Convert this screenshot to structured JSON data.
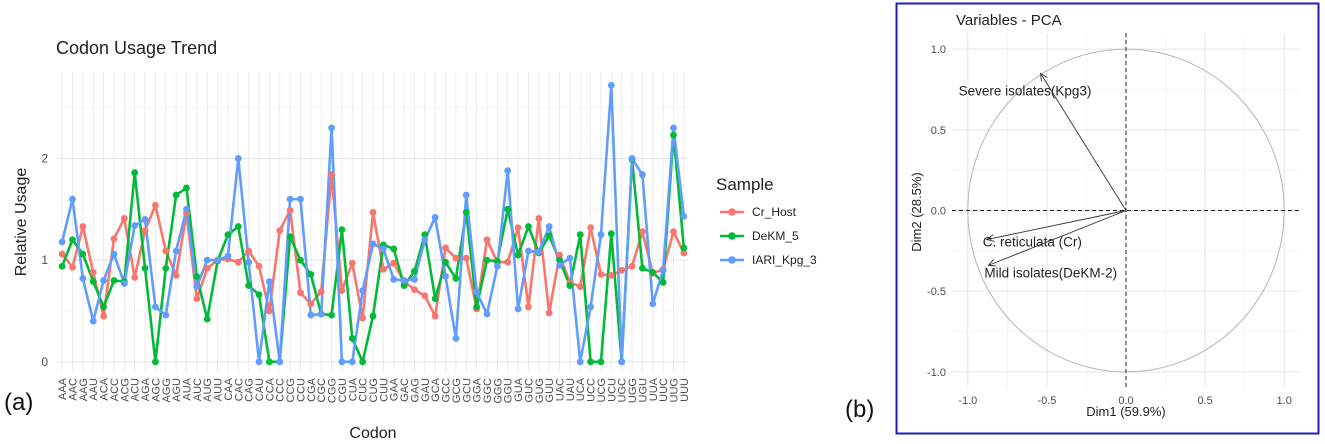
{
  "panel_labels": {
    "a": "(a)",
    "b": "(b)"
  },
  "chart_data": [
    {
      "type": "line",
      "title": "Codon Usage Trend",
      "xlabel": "Codon",
      "ylabel": "Relative Usage",
      "ylim": [
        -0.1,
        2.85
      ],
      "yticks": [
        0,
        1,
        2
      ],
      "grid": true,
      "legend": {
        "title": "Sample",
        "position": "right"
      },
      "categories": [
        "AAA",
        "AAC",
        "AAG",
        "AAU",
        "ACA",
        "ACC",
        "ACG",
        "ACU",
        "AGA",
        "AGC",
        "AGG",
        "AGU",
        "AUA",
        "AUC",
        "AUG",
        "AUU",
        "CAA",
        "CAC",
        "CAG",
        "CAU",
        "CCA",
        "CCC",
        "CCG",
        "CCU",
        "CGA",
        "CGC",
        "CGG",
        "CGU",
        "CUA",
        "CUC",
        "CUG",
        "CUU",
        "GAA",
        "GAC",
        "GAG",
        "GAU",
        "GCA",
        "GCC",
        "GCG",
        "GCU",
        "GGA",
        "GGC",
        "GGG",
        "GGU",
        "GUA",
        "GUC",
        "GUG",
        "GUU",
        "UAC",
        "UAU",
        "UCA",
        "UCC",
        "UCG",
        "UCU",
        "UGC",
        "UGG",
        "UGU",
        "UUA",
        "UUC",
        "UUG",
        "UUU"
      ],
      "series": [
        {
          "name": "Cr_Host",
          "color": "#F8766D",
          "values": [
            1.06,
            0.93,
            1.33,
            0.88,
            0.45,
            1.21,
            1.41,
            0.83,
            1.29,
            1.54,
            1.09,
            0.85,
            1.46,
            0.62,
            0.92,
            1.0,
            1.01,
            0.98,
            1.09,
            0.94,
            0.5,
            1.29,
            1.49,
            0.68,
            0.57,
            0.69,
            1.84,
            0.7,
            0.97,
            0.43,
            1.47,
            0.91,
            0.97,
            0.79,
            0.71,
            0.65,
            0.45,
            1.12,
            1.02,
            1.02,
            0.52,
            1.2,
            0.98,
            0.98,
            1.32,
            0.54,
            1.41,
            0.48,
            1.05,
            0.78,
            0.74,
            1.32,
            0.86,
            0.85,
            0.9,
            0.94,
            1.28,
            0.87,
            0.91,
            1.28,
            1.07
          ]
        },
        {
          "name": "DeKM_5",
          "color": "#00BA38",
          "values": [
            0.94,
            1.2,
            1.06,
            0.79,
            0.54,
            0.8,
            0.79,
            1.86,
            0.92,
            0.0,
            0.92,
            1.64,
            1.71,
            0.84,
            0.42,
            0.99,
            1.25,
            1.33,
            0.75,
            0.66,
            0.0,
            0.0,
            1.23,
            1.0,
            0.86,
            0.47,
            0.46,
            1.3,
            0.23,
            0.0,
            0.45,
            1.15,
            1.11,
            0.75,
            0.89,
            1.25,
            0.62,
            0.98,
            0.82,
            1.47,
            0.54,
            1.0,
            0.99,
            1.5,
            1.05,
            1.33,
            1.07,
            1.24,
            1.0,
            0.75,
            1.25,
            0.0,
            0.0,
            1.26,
            0.0,
            1.99,
            0.92,
            0.88,
            0.78,
            2.23,
            1.12
          ]
        },
        {
          "name": "IARI_Kpg_3",
          "color": "#619CFF",
          "values": [
            1.18,
            1.6,
            0.82,
            0.4,
            0.8,
            1.06,
            0.77,
            1.34,
            1.4,
            0.54,
            0.46,
            1.09,
            1.5,
            0.74,
            1.0,
            1.0,
            1.04,
            2.0,
            0.98,
            0.0,
            0.79,
            0.0,
            1.6,
            1.6,
            0.46,
            0.47,
            2.3,
            0.0,
            0.0,
            0.7,
            1.16,
            1.11,
            0.81,
            0.8,
            0.81,
            1.2,
            1.42,
            0.84,
            0.23,
            1.64,
            0.69,
            0.47,
            0.94,
            1.88,
            0.52,
            1.09,
            1.08,
            1.33,
            0.95,
            1.02,
            0.0,
            0.54,
            1.25,
            2.72,
            0.0,
            2.0,
            1.84,
            0.57,
            0.9,
            2.3,
            1.43
          ]
        }
      ]
    },
    {
      "type": "scatter",
      "title": "Variables - PCA",
      "xlabel": "Dim1 (59.9%)",
      "ylabel": "Dim2 (28.5%)",
      "xlim": [
        -1.1,
        1.1
      ],
      "ylim": [
        -1.1,
        1.1
      ],
      "xticks": [
        -1.0,
        -0.5,
        0.0,
        0.5,
        1.0
      ],
      "yticks": [
        -1.0,
        -0.5,
        0.0,
        0.5,
        1.0
      ],
      "xtick_labels": [
        "-1.0",
        "-0.5",
        "0.0",
        "0.5",
        "1.0"
      ],
      "ytick_labels": [
        "-1.0",
        "-0.5",
        "0.0",
        "0.5",
        "1.0"
      ],
      "grid": true,
      "unit_circle": true,
      "vectors": [
        {
          "label": "Severe isolates(Kpg3)",
          "x": -0.54,
          "y": 0.85
        },
        {
          "label": "C. reticulata (Cr)",
          "x": -0.88,
          "y": -0.18
        },
        {
          "label": "Mild isolates(DeKM-2)",
          "x": -0.87,
          "y": -0.34
        }
      ]
    }
  ]
}
